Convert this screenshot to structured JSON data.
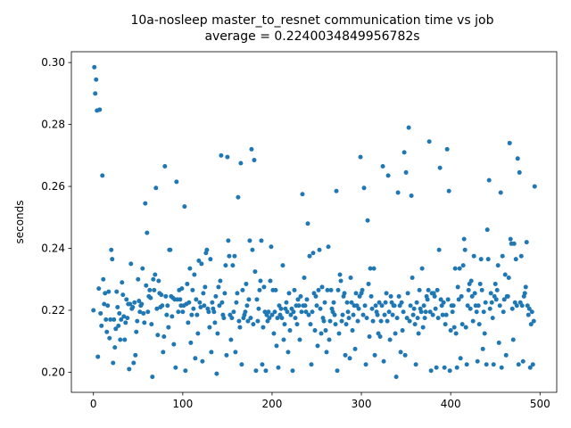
{
  "chart_data": {
    "type": "scatter",
    "title": "10a-nosleep master_to_resnet communication time vs job",
    "subtitle": "average = 0.2240034849956782s",
    "y_label": "seconds",
    "color": "#1f77b4",
    "xlim": [
      -24.7,
      518.7
    ],
    "ylim": [
      0.1935,
      0.3035
    ],
    "xticks": [
      0,
      100,
      200,
      300,
      400,
      500
    ],
    "yticks": [
      {
        "value": 0.2,
        "label": "0.20"
      },
      0.22,
      0.24,
      0.26,
      0.28,
      {
        "value": 0.3,
        "label": "0.30"
      }
    ],
    "x": [
      0,
      1,
      2,
      3,
      4,
      5,
      6,
      7,
      8,
      9,
      10,
      11,
      12,
      13,
      14,
      15,
      16,
      17,
      18,
      19,
      20,
      21,
      22,
      23,
      24,
      25,
      26,
      27,
      28,
      29,
      30,
      31,
      32,
      33,
      34,
      35,
      36,
      37,
      38,
      39,
      40,
      41,
      42,
      43,
      44,
      45,
      46,
      47,
      48,
      49,
      50,
      51,
      52,
      53,
      54,
      55,
      56,
      57,
      58,
      59,
      60,
      61,
      62,
      63,
      64,
      65,
      66,
      67,
      68,
      69,
      70,
      71,
      72,
      73,
      74,
      75,
      76,
      77,
      78,
      79,
      80,
      81,
      82,
      83,
      84,
      85,
      86,
      87,
      88,
      89,
      90,
      91,
      92,
      93,
      94,
      95,
      96,
      97,
      98,
      99,
      100,
      101,
      102,
      103,
      104,
      105,
      106,
      107,
      108,
      109,
      110,
      111,
      112,
      113,
      114,
      115,
      116,
      117,
      118,
      119,
      120,
      121,
      122,
      123,
      124,
      125,
      126,
      127,
      128,
      129,
      130,
      131,
      132,
      133,
      134,
      135,
      136,
      137,
      138,
      139,
      140,
      141,
      142,
      143,
      144,
      145,
      146,
      147,
      148,
      149,
      150,
      151,
      152,
      153,
      154,
      155,
      156,
      157,
      158,
      159,
      160,
      161,
      162,
      163,
      164,
      165,
      166,
      167,
      168,
      169,
      170,
      171,
      172,
      173,
      174,
      175,
      176,
      177,
      178,
      179,
      180,
      181,
      182,
      183,
      184,
      185,
      186,
      187,
      188,
      189,
      190,
      191,
      192,
      193,
      194,
      195,
      196,
      197,
      198,
      199,
      200,
      201,
      202,
      203,
      204,
      205,
      206,
      207,
      208,
      209,
      210,
      211,
      212,
      213,
      214,
      215,
      216,
      217,
      218,
      219,
      220,
      221,
      222,
      223,
      224,
      225,
      226,
      227,
      228,
      229,
      230,
      231,
      232,
      233,
      234,
      235,
      236,
      237,
      238,
      239,
      240,
      241,
      242,
      243,
      244,
      245,
      246,
      247,
      248,
      249,
      250,
      251,
      252,
      253,
      254,
      255,
      256,
      257,
      258,
      259,
      260,
      261,
      262,
      263,
      264,
      265,
      266,
      267,
      268,
      269,
      270,
      271,
      272,
      273,
      274,
      275,
      276,
      277,
      278,
      279,
      280,
      281,
      282,
      283,
      284,
      285,
      286,
      287,
      288,
      289,
      290,
      291,
      292,
      293,
      294,
      295,
      296,
      297,
      298,
      299,
      300,
      301,
      302,
      303,
      304,
      305,
      306,
      307,
      308,
      309,
      310,
      311,
      312,
      313,
      314,
      315,
      316,
      317,
      318,
      319,
      320,
      321,
      322,
      323,
      324,
      325,
      326,
      327,
      328,
      329,
      330,
      331,
      332,
      333,
      334,
      335,
      336,
      337,
      338,
      339,
      340,
      341,
      342,
      343,
      344,
      345,
      346,
      347,
      348,
      349,
      350,
      351,
      352,
      353,
      354,
      355,
      356,
      357,
      358,
      359,
      360,
      361,
      362,
      363,
      364,
      365,
      366,
      367,
      368,
      369,
      370,
      371,
      372,
      373,
      374,
      375,
      376,
      377,
      378,
      379,
      380,
      381,
      382,
      383,
      384,
      385,
      386,
      387,
      388,
      389,
      390,
      391,
      392,
      393,
      394,
      395,
      396,
      397,
      398,
      399,
      400,
      401,
      402,
      403,
      404,
      405,
      406,
      407,
      408,
      409,
      410,
      411,
      412,
      413,
      414,
      415,
      416,
      417,
      418,
      419,
      420,
      421,
      422,
      423,
      424,
      425,
      426,
      427,
      428,
      429,
      430,
      431,
      432,
      433,
      434,
      435,
      436,
      437,
      438,
      439,
      440,
      441,
      442,
      443,
      444,
      445,
      446,
      447,
      448,
      449,
      450,
      451,
      452,
      453,
      454,
      455,
      456,
      457,
      458,
      459,
      460,
      461,
      462,
      463,
      464,
      465,
      466,
      467,
      468,
      469,
      470,
      471,
      472,
      473,
      474,
      475,
      476,
      477,
      478,
      479,
      480,
      481,
      482,
      483,
      484,
      485,
      486,
      487,
      488,
      489,
      490,
      491,
      492,
      493,
      494
    ],
    "values": [
      0.22,
      0.2985,
      0.29,
      0.2945,
      0.2845,
      0.205,
      0.227,
      0.2848,
      0.219,
      0.215,
      0.2635,
      0.23,
      0.222,
      0.2255,
      0.217,
      0.213,
      0.2215,
      0.226,
      0.211,
      0.217,
      0.2395,
      0.2365,
      0.203,
      0.217,
      0.208,
      0.214,
      0.226,
      0.221,
      0.215,
      0.219,
      0.2105,
      0.217,
      0.229,
      0.225,
      0.218,
      0.2105,
      0.216,
      0.2235,
      0.2175,
      0.222,
      0.201,
      0.222,
      0.235,
      0.2205,
      0.221,
      0.203,
      0.2225,
      0.2055,
      0.213,
      0.2165,
      0.23,
      0.223,
      0.2195,
      0.2215,
      0.222,
      0.2335,
      0.219,
      0.216,
      0.2545,
      0.228,
      0.245,
      0.2195,
      0.2245,
      0.2265,
      0.224,
      0.2155,
      0.1985,
      0.23,
      0.2265,
      0.2315,
      0.2595,
      0.2205,
      0.212,
      0.2295,
      0.2255,
      0.221,
      0.225,
      0.2215,
      0.2065,
      0.2115,
      0.2665,
      0.2245,
      0.2185,
      0.2215,
      0.2145,
      0.2395,
      0.2395,
      0.2245,
      0.218,
      0.224,
      0.209,
      0.2235,
      0.2015,
      0.2615,
      0.2235,
      0.2195,
      0.2265,
      0.2235,
      0.2215,
      0.227,
      0.2195,
      0.2215,
      0.2535,
      0.2005,
      0.222,
      0.2285,
      0.216,
      0.2225,
      0.2335,
      0.2095,
      0.2185,
      0.2265,
      0.2205,
      0.2315,
      0.2045,
      0.2235,
      0.2185,
      0.2125,
      0.236,
      0.2225,
      0.221,
      0.235,
      0.2035,
      0.2255,
      0.2215,
      0.2275,
      0.2385,
      0.2395,
      0.2205,
      0.2195,
      0.2145,
      0.2365,
      0.2065,
      0.2225,
      0.2205,
      0.2195,
      0.216,
      0.2245,
      0.1995,
      0.2125,
      0.2275,
      0.2215,
      0.2295,
      0.27,
      0.2225,
      0.2185,
      0.2175,
      0.2255,
      0.2345,
      0.2055,
      0.2695,
      0.2425,
      0.2375,
      0.2185,
      0.2105,
      0.2175,
      0.2345,
      0.2195,
      0.2375,
      0.2065,
      0.2225,
      0.2255,
      0.2565,
      0.2165,
      0.2145,
      0.2675,
      0.2025,
      0.2265,
      0.2175,
      0.2185,
      0.2195,
      0.2285,
      0.2215,
      0.2165,
      0.2235,
      0.2425,
      0.2175,
      0.272,
      0.2395,
      0.2155,
      0.2685,
      0.2325,
      0.2005,
      0.2235,
      0.2165,
      0.2205,
      0.2265,
      0.2295,
      0.2425,
      0.2025,
      0.2145,
      0.2275,
      0.2195,
      0.2005,
      0.2185,
      0.2165,
      0.2195,
      0.2175,
      0.2295,
      0.2405,
      0.2185,
      0.2265,
      0.2125,
      0.2195,
      0.2265,
      0.2085,
      0.2175,
      0.2015,
      0.2215,
      0.2185,
      0.2205,
      0.2175,
      0.2345,
      0.2105,
      0.2155,
      0.2205,
      0.2225,
      0.2195,
      0.2065,
      0.2255,
      0.2135,
      0.2185,
      0.2205,
      0.2005,
      0.2195,
      0.2265,
      0.2175,
      0.2215,
      0.2155,
      0.2235,
      0.2215,
      0.2105,
      0.2245,
      0.2195,
      0.2575,
      0.2215,
      0.2305,
      0.2215,
      0.2195,
      0.2235,
      0.248,
      0.2185,
      0.2375,
      0.2155,
      0.2025,
      0.2195,
      0.2385,
      0.2255,
      0.2135,
      0.2245,
      0.2215,
      0.2085,
      0.2265,
      0.2395,
      0.2205,
      0.2125,
      0.2275,
      0.2175,
      0.2165,
      0.2225,
      0.2135,
      0.2065,
      0.2265,
      0.2405,
      0.2105,
      0.2165,
      0.2265,
      0.2205,
      0.2195,
      0.2225,
      0.2185,
      0.2155,
      0.2585,
      0.2005,
      0.2265,
      0.2125,
      0.2315,
      0.2295,
      0.2165,
      0.2185,
      0.2245,
      0.2255,
      0.2055,
      0.2155,
      0.2225,
      0.2195,
      0.2175,
      0.2045,
      0.2305,
      0.2225,
      0.2135,
      0.2185,
      0.2215,
      0.2075,
      0.2255,
      0.2215,
      0.2165,
      0.2205,
      0.2245,
      0.2695,
      0.2255,
      0.2265,
      0.2185,
      0.2595,
      0.2215,
      0.2025,
      0.2175,
      0.249,
      0.2285,
      0.2115,
      0.2335,
      0.2245,
      0.2205,
      0.2165,
      0.2335,
      0.2055,
      0.2215,
      0.2195,
      0.2185,
      0.2125,
      0.2225,
      0.2115,
      0.2165,
      0.2215,
      0.2665,
      0.2035,
      0.2185,
      0.2225,
      0.2255,
      0.2165,
      0.2635,
      0.2195,
      0.2105,
      0.2245,
      0.2225,
      0.2185,
      0.2215,
      0.2215,
      0.2125,
      0.1985,
      0.2175,
      0.258,
      0.2245,
      0.2215,
      0.2065,
      0.2225,
      0.2135,
      0.2195,
      0.271,
      0.2055,
      0.2645,
      0.2175,
      0.2255,
      0.279,
      0.2165,
      0.2215,
      0.257,
      0.2305,
      0.2185,
      0.2205,
      0.2155,
      0.2025,
      0.2225,
      0.2175,
      0.2125,
      0.2265,
      0.2205,
      0.2195,
      0.2335,
      0.2145,
      0.2215,
      0.2175,
      0.2195,
      0.2245,
      0.2235,
      0.2265,
      0.2745,
      0.2195,
      0.2005,
      0.2255,
      0.2185,
      0.2255,
      0.2245,
      0.2205,
      0.2015,
      0.2265,
      0.2175,
      0.2395,
      0.266,
      0.2235,
      0.2215,
      0.2185,
      0.2225,
      0.2015,
      0.2155,
      0.2185,
      0.272,
      0.2235,
      0.2585,
      0.2005,
      0.2135,
      0.2215,
      0.2195,
      0.2215,
      0.2145,
      0.2335,
      0.2125,
      0.2015,
      0.2275,
      0.2235,
      0.2335,
      0.2045,
      0.2245,
      0.2155,
      0.2345,
      0.243,
      0.2395,
      0.2145,
      0.2025,
      0.2215,
      0.2265,
      0.2285,
      0.2205,
      0.2295,
      0.2245,
      0.2165,
      0.2375,
      0.2255,
      0.2215,
      0.2195,
      0.2035,
      0.2215,
      0.2155,
      0.2285,
      0.2365,
      0.2265,
      0.2075,
      0.2195,
      0.2125,
      0.2225,
      0.2025,
      0.246,
      0.2365,
      0.262,
      0.2205,
      0.2255,
      0.2225,
      0.2175,
      0.2025,
      0.2245,
      0.2285,
      0.2235,
      0.2265,
      0.2345,
      0.2095,
      0.2215,
      0.258,
      0.2015,
      0.2375,
      0.2195,
      0.2235,
      0.2315,
      0.2055,
      0.2245,
      0.2245,
      0.2305,
      0.274,
      0.243,
      0.2415,
      0.2205,
      0.2105,
      0.2415,
      0.2225,
      0.2365,
      0.2215,
      0.269,
      0.2025,
      0.2645,
      0.2225,
      0.2375,
      0.2215,
      0.2035,
      0.2245,
      0.2255,
      0.2275,
      0.242,
      0.2215,
      0.2185,
      0.2205,
      0.2015,
      0.2155,
      0.2195,
      0.2025,
      0.2165,
      0.26
    ]
  }
}
